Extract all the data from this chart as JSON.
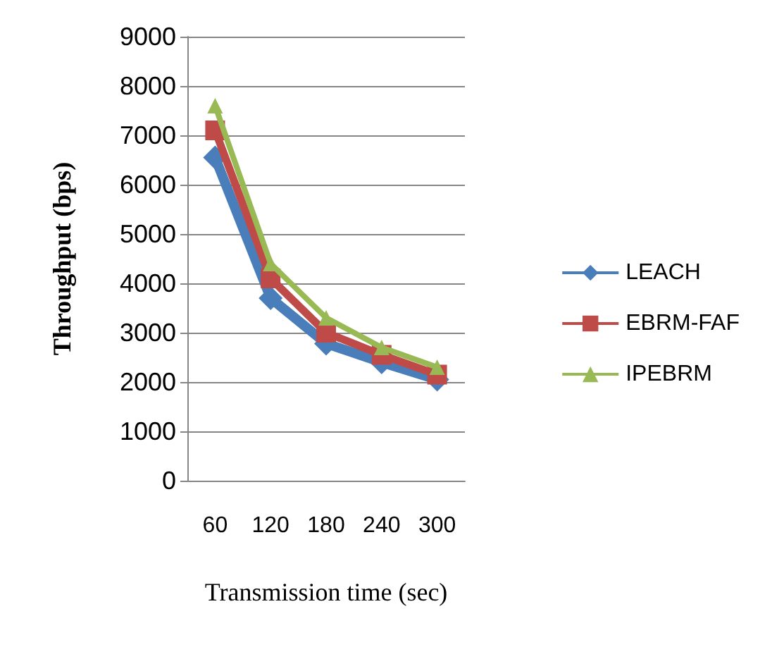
{
  "chart_data": {
    "type": "line",
    "xlabel": "Transmission time (sec)",
    "ylabel": "Throughput (bps)",
    "categories": [
      "60",
      "120",
      "180",
      "240",
      "300"
    ],
    "series": [
      {
        "name": "LEACH",
        "color": "#4a7ebb",
        "marker": "diamond",
        "values": [
          6550,
          3700,
          2780,
          2400,
          2050
        ]
      },
      {
        "name": "EBRM-FAF",
        "color": "#be4b48",
        "marker": "square",
        "values": [
          7100,
          4100,
          3000,
          2550,
          2150
        ]
      },
      {
        "name": "IPEBRM",
        "color": "#98b954",
        "marker": "triangle",
        "values": [
          7600,
          4400,
          3300,
          2700,
          2300
        ]
      }
    ],
    "ylim": [
      0,
      9000
    ],
    "yticks": [
      0,
      1000,
      2000,
      3000,
      4000,
      5000,
      6000,
      7000,
      8000,
      9000
    ],
    "grid": "y",
    "legend": "right"
  }
}
